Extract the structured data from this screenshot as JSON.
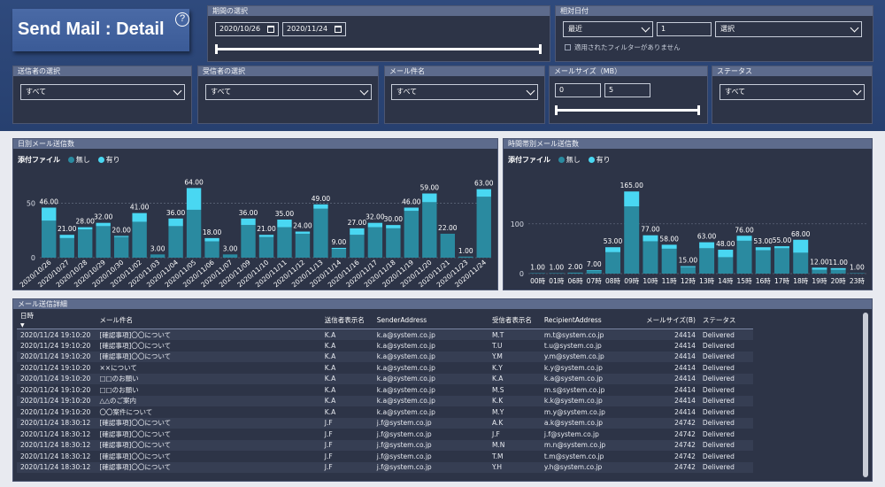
{
  "title": "Send Mail : Detail",
  "help_icon": "?",
  "period": {
    "label": "期間の選択",
    "start": "2020/10/26",
    "end": "2020/11/24"
  },
  "relative": {
    "label": "相対日付",
    "mode": "最近",
    "count": "1",
    "unit": "選択",
    "note": "適用されたフィルターがありません"
  },
  "filters": {
    "sender_label": "送信者の選択",
    "sender_value": "すべて",
    "receiver_label": "受信者の選択",
    "receiver_value": "すべて",
    "subject_label": "メール件名",
    "subject_value": "すべて",
    "size_label": "メールサイズ（MB）",
    "size_min": "0",
    "size_max": "5",
    "status_label": "ステータス",
    "status_value": "すべて"
  },
  "colors": {
    "no_attach": "#2a8aa0",
    "with_attach": "#49d7f2"
  },
  "chart_data": [
    {
      "type": "bar",
      "title": "日別メール送信数",
      "legend_title": "添付ファイル",
      "series_names": [
        "無し",
        "有り"
      ],
      "categories": [
        "2020/10/26",
        "2020/10/27",
        "2020/10/28",
        "2020/10/29",
        "2020/10/30",
        "2020/11/02",
        "2020/11/03",
        "2020/11/04",
        "2020/11/05",
        "2020/11/06",
        "2020/11/07",
        "2020/11/09",
        "2020/11/10",
        "2020/11/11",
        "2020/11/12",
        "2020/11/13",
        "2020/11/14",
        "2020/11/16",
        "2020/11/17",
        "2020/11/18",
        "2020/11/19",
        "2020/11/20",
        "2020/11/21",
        "2020/11/23",
        "2020/11/24"
      ],
      "totals": [
        46,
        21,
        28,
        32,
        20,
        41,
        3,
        36,
        64,
        18,
        3,
        36,
        21,
        35,
        24,
        49,
        9,
        27,
        32,
        30,
        46,
        59,
        22,
        1,
        63
      ],
      "total_labels": [
        "46.00",
        "21.00",
        "28.00",
        "32.00",
        "20.00",
        "41.00",
        "3.00",
        "36.00",
        "64.00",
        "18.00",
        "3.00",
        "36.00",
        "21.00",
        "35.00",
        "24.00",
        "49.00",
        "9.00",
        "27.00",
        "32.00",
        "30.00",
        "46.00",
        "59.00",
        "22.00",
        "1.00",
        "63.00"
      ],
      "with_attach": [
        12,
        3,
        2,
        3,
        1,
        8,
        0,
        7,
        20,
        3,
        0,
        6,
        2,
        7,
        2,
        4,
        1,
        6,
        4,
        3,
        3,
        8,
        0,
        0,
        7
      ],
      "y_ticks": [
        0,
        50
      ],
      "ylim": [
        0,
        70
      ],
      "grid": true,
      "legend_position": "top-left"
    },
    {
      "type": "bar",
      "title": "時間帯別メール送信数",
      "legend_title": "添付ファイル",
      "series_names": [
        "無し",
        "有り"
      ],
      "categories": [
        "00時",
        "01時",
        "06時",
        "07時",
        "08時",
        "09時",
        "10時",
        "11時",
        "12時",
        "13時",
        "14時",
        "15時",
        "16時",
        "17時",
        "18時",
        "19時",
        "20時",
        "23時"
      ],
      "totals": [
        1,
        1,
        2,
        7,
        53,
        165,
        77,
        58,
        15,
        63,
        48,
        76,
        53,
        55,
        68,
        12,
        11,
        1
      ],
      "total_labels": [
        "1.00",
        "1.00",
        "2.00",
        "7.00",
        "53.00",
        "165.00",
        "77.00",
        "58.00",
        "15.00",
        "63.00",
        "48.00",
        "76.00",
        "53.00",
        "55.00",
        "68.00",
        "12.00",
        "11.00",
        "1.00"
      ],
      "with_attach": [
        0,
        0,
        0,
        1,
        10,
        30,
        12,
        8,
        2,
        12,
        15,
        10,
        6,
        4,
        26,
        4,
        3,
        0
      ],
      "y_ticks": [
        0,
        100
      ],
      "ylim": [
        0,
        185
      ],
      "grid": true,
      "legend_position": "top-left"
    }
  ],
  "table": {
    "title": "メール送信詳細",
    "headers": [
      "日時",
      "メール件名",
      "送信者表示名",
      "SenderAddress",
      "受信者表示名",
      "RecipientAddress",
      "メールサイズ(B)",
      "ステータス"
    ],
    "rows": [
      [
        "2020/11/24 19:10:20",
        "[確認事項]〇〇について",
        "K.A",
        "k.a@system.co.jp",
        "M.T",
        "m.t@system.co.jp",
        "24414",
        "Delivered"
      ],
      [
        "2020/11/24 19:10:20",
        "[確認事項]〇〇について",
        "K.A",
        "k.a@system.co.jp",
        "T.U",
        "t.u@system.co.jp",
        "24414",
        "Delivered"
      ],
      [
        "2020/11/24 19:10:20",
        "[確認事項]〇〇について",
        "K.A",
        "k.a@system.co.jp",
        "Y.M",
        "y.m@system.co.jp",
        "24414",
        "Delivered"
      ],
      [
        "2020/11/24 19:10:20",
        "××について",
        "K.A",
        "k.a@system.co.jp",
        "K.Y",
        "k.y@system.co.jp",
        "24414",
        "Delivered"
      ],
      [
        "2020/11/24 19:10:20",
        "□□のお願い",
        "K.A",
        "k.a@system.co.jp",
        "K.A",
        "k.a@system.co.jp",
        "24414",
        "Delivered"
      ],
      [
        "2020/11/24 19:10:20",
        "□□のお願い",
        "K.A",
        "k.a@system.co.jp",
        "M.S",
        "m.s@system.co.jp",
        "24414",
        "Delivered"
      ],
      [
        "2020/11/24 19:10:20",
        "△△のご案内",
        "K.A",
        "k.a@system.co.jp",
        "K.K",
        "k.k@system.co.jp",
        "24414",
        "Delivered"
      ],
      [
        "2020/11/24 19:10:20",
        "〇〇案件について",
        "K.A",
        "k.a@system.co.jp",
        "M.Y",
        "m.y@system.co.jp",
        "24414",
        "Delivered"
      ],
      [
        "2020/11/24 18:30:12",
        "[確認事項]〇〇について",
        "J.F",
        "j.f@system.co.jp",
        "A.K",
        "a.k@system.co.jp",
        "24742",
        "Delivered"
      ],
      [
        "2020/11/24 18:30:12",
        "[確認事項]〇〇について",
        "J.F",
        "j.f@system.co.jp",
        "J.F",
        "j.f@system.co.jp",
        "24742",
        "Delivered"
      ],
      [
        "2020/11/24 18:30:12",
        "[確認事項]〇〇について",
        "J.F",
        "j.f@system.co.jp",
        "M.N",
        "m.n@system.co.jp",
        "24742",
        "Delivered"
      ],
      [
        "2020/11/24 18:30:12",
        "[確認事項]〇〇について",
        "J.F",
        "j.f@system.co.jp",
        "T.M",
        "t.m@system.co.jp",
        "24742",
        "Delivered"
      ],
      [
        "2020/11/24 18:30:12",
        "[確認事項]〇〇について",
        "J.F",
        "j.f@system.co.jp",
        "Y.H",
        "y.h@system.co.jp",
        "24742",
        "Delivered"
      ]
    ]
  }
}
